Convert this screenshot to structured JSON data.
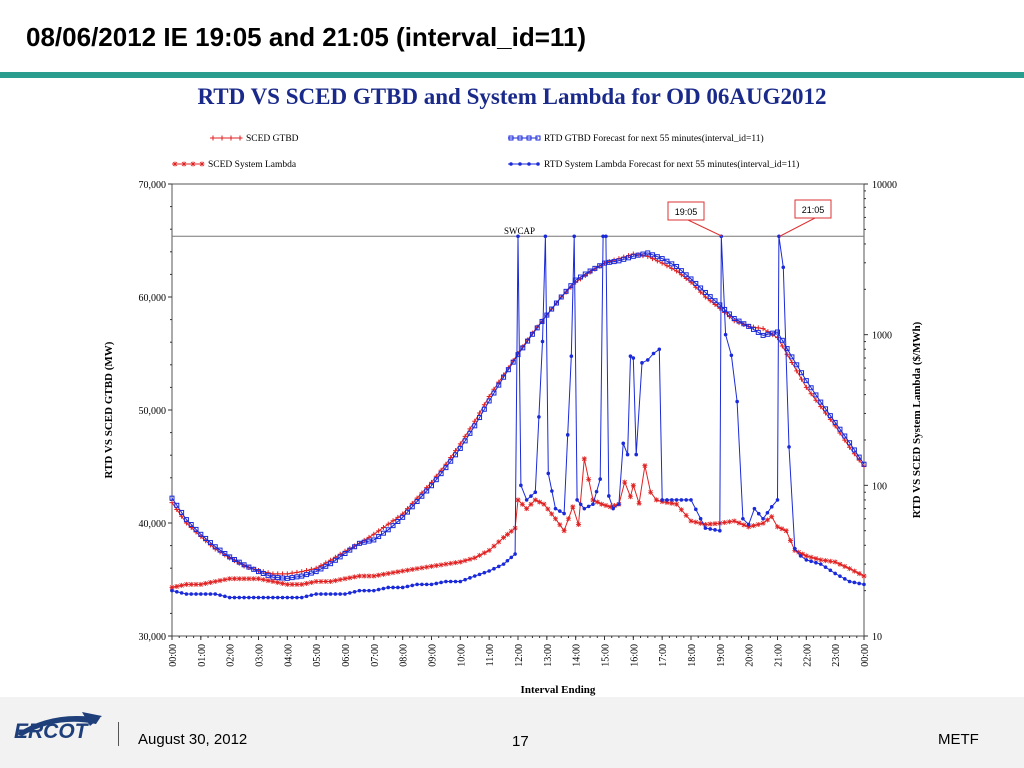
{
  "slide": {
    "title": "08/06/2012  IE 19:05 and 21:05 (interval_id=11)",
    "footer_date": "August 30, 2012",
    "page_number": "17",
    "org": "METF",
    "logo_text": "ERCOT"
  },
  "colors": {
    "accent_rule": "#2a9d8f",
    "chart_title": "#1a2a8a",
    "sced_series": "#e02020",
    "rtd_series": "#1a2ad8"
  },
  "chart_data": {
    "type": "line",
    "title": "RTD VS SCED GTBD and System Lambda for OD 06AUG2012",
    "xlabel": "Interval Ending",
    "ylabel_left": "RTD VS SCED GTBD (MW)",
    "ylabel_right": "RTD VS SCED System Lambda ($/MWh)",
    "x_ticks": [
      "00:00",
      "01:00",
      "02:00",
      "03:00",
      "04:00",
      "05:00",
      "06:00",
      "07:00",
      "08:00",
      "09:00",
      "10:00",
      "11:00",
      "12:00",
      "13:00",
      "14:00",
      "15:00",
      "16:00",
      "17:00",
      "18:00",
      "19:00",
      "20:00",
      "21:00",
      "22:00",
      "23:00",
      "00:00"
    ],
    "x_range_hours": [
      0,
      24
    ],
    "y_left": {
      "range": [
        30000,
        70000
      ],
      "ticks": [
        30000,
        40000,
        50000,
        60000,
        70000
      ],
      "tick_labels": [
        "30,000",
        "40,000",
        "50,000",
        "60,000",
        "70,000"
      ]
    },
    "y_right": {
      "scale": "log",
      "range": [
        10,
        10000
      ],
      "ticks": [
        10,
        100,
        1000,
        10000
      ],
      "tick_labels": [
        "10",
        "100",
        "1000",
        "10000"
      ]
    },
    "legend": {
      "placement": "top",
      "entries": [
        "SCED GTBD",
        "RTD GTBD Forecast for next 55 minutes(interval_id=11)",
        "SCED System Lambda",
        "RTD System Lambda Forecast for next 55 minutes(interval_id=11)"
      ]
    },
    "reference_line": {
      "label": "SWCAP",
      "axis": "right",
      "value": 4500
    },
    "annotations": [
      {
        "label": "19:05",
        "x_hour": 19.08,
        "value": 4500
      },
      {
        "label": "21:05",
        "x_hour": 21.08,
        "value": 4500
      }
    ],
    "series": [
      {
        "name": "SCED GTBD",
        "axis": "left",
        "marker": "plus",
        "color": "#e02020",
        "x": [
          0,
          0.5,
          1,
          1.5,
          2,
          2.5,
          3,
          3.5,
          4,
          4.5,
          5,
          5.5,
          6,
          6.5,
          7,
          7.5,
          8,
          8.5,
          9,
          9.5,
          10,
          10.5,
          11,
          11.5,
          12,
          12.5,
          13,
          13.5,
          14,
          14.5,
          15,
          15.5,
          16,
          16.5,
          17,
          17.5,
          18,
          18.5,
          19,
          19.5,
          20,
          20.5,
          21,
          21.5,
          22,
          22.5,
          23,
          23.5,
          24
        ],
        "y": [
          41800,
          40000,
          38800,
          37700,
          36900,
          36200,
          35800,
          35500,
          35500,
          35700,
          36000,
          36700,
          37500,
          38200,
          39000,
          39900,
          40800,
          42200,
          43600,
          45200,
          47000,
          49000,
          51200,
          53100,
          55000,
          56800,
          58400,
          60000,
          61300,
          62200,
          63000,
          63400,
          63800,
          63600,
          63000,
          62300,
          61300,
          60000,
          59000,
          57900,
          57400,
          57200,
          56400,
          54200,
          52000,
          50300,
          48600,
          46700,
          45000
        ]
      },
      {
        "name": "RTD GTBD Forecast for next 55 minutes(interval_id=11)",
        "axis": "left",
        "marker": "square",
        "color": "#1a2ad8",
        "x": [
          0,
          0.5,
          1,
          1.5,
          2,
          2.5,
          3,
          3.5,
          4,
          4.5,
          5,
          5.5,
          6,
          6.5,
          7,
          7.5,
          8,
          8.5,
          9,
          9.5,
          10,
          10.5,
          11,
          11.5,
          12,
          12.5,
          13,
          13.5,
          14,
          14.5,
          15,
          15.5,
          16,
          16.5,
          17,
          17.5,
          18,
          18.5,
          19,
          19.5,
          20,
          20.5,
          21,
          21.5,
          22,
          22.5,
          23,
          23.5,
          24
        ],
        "y": [
          42200,
          40300,
          39000,
          37900,
          37000,
          36300,
          35700,
          35200,
          35100,
          35300,
          35700,
          36400,
          37300,
          38200,
          38500,
          39400,
          40500,
          41900,
          43300,
          44900,
          46600,
          48600,
          50800,
          52900,
          54900,
          56700,
          58400,
          60000,
          61500,
          62300,
          63000,
          63200,
          63600,
          63900,
          63400,
          62700,
          61600,
          60400,
          59300,
          58100,
          57400,
          56600,
          56900,
          54700,
          52600,
          50700,
          48900,
          47100,
          45200
        ]
      },
      {
        "name": "SCED System Lambda",
        "axis": "right",
        "marker": "star",
        "color": "#e02020",
        "x": [
          0,
          0.5,
          1,
          1.5,
          2,
          2.5,
          3,
          3.5,
          4,
          4.5,
          5,
          5.5,
          6,
          6.5,
          7,
          7.5,
          8,
          8.5,
          9,
          9.5,
          10,
          10.5,
          11,
          11.5,
          11.9,
          12,
          12.3,
          12.6,
          12.9,
          13.3,
          13.6,
          13.9,
          14.1,
          14.3,
          14.6,
          14.9,
          15.2,
          15.5,
          15.7,
          15.9,
          16.0,
          16.2,
          16.4,
          16.6,
          16.8,
          17.0,
          17.5,
          18,
          18.5,
          19,
          19.5,
          20,
          20.5,
          20.8,
          21,
          21.3,
          21.6,
          22,
          22.5,
          23,
          23.5,
          24
        ],
        "y": [
          21,
          22,
          22,
          23,
          24,
          24,
          24,
          23,
          22,
          22,
          23,
          23,
          24,
          25,
          25,
          26,
          27,
          28,
          29,
          30,
          31,
          33,
          37,
          45,
          52,
          80,
          70,
          80,
          75,
          60,
          50,
          72,
          55,
          150,
          80,
          75,
          72,
          75,
          105,
          84,
          100,
          76,
          135,
          90,
          80,
          78,
          75,
          58,
          55,
          56,
          58,
          53,
          56,
          62,
          53,
          50,
          37,
          34,
          32,
          31,
          28,
          25
        ]
      },
      {
        "name": "RTD System Lambda Forecast for next 55 minutes(interval_id=11)",
        "axis": "right",
        "marker": "dot",
        "color": "#1a2ad8",
        "x": [
          0,
          0.5,
          1,
          1.5,
          2,
          2.5,
          3,
          3.5,
          4,
          4.5,
          5,
          5.5,
          6,
          6.5,
          7,
          7.5,
          8,
          8.5,
          9,
          9.5,
          10,
          10.5,
          11,
          11.5,
          11.9,
          12.0,
          12.1,
          12.3,
          12.6,
          12.85,
          12.95,
          13.05,
          13.3,
          13.6,
          13.85,
          13.95,
          14.05,
          14.3,
          14.6,
          14.85,
          14.95,
          15.05,
          15.15,
          15.3,
          15.5,
          15.65,
          15.8,
          15.9,
          16.0,
          16.1,
          16.3,
          16.5,
          16.7,
          16.9,
          17.0,
          17.5,
          18,
          18.5,
          19,
          19.05,
          19.2,
          19.4,
          19.6,
          19.8,
          20,
          20.2,
          20.5,
          20.8,
          21,
          21.05,
          21.2,
          21.4,
          21.6,
          21.8,
          22,
          22.5,
          23,
          23.5,
          24
        ],
        "y": [
          20,
          19,
          19,
          19,
          18,
          18,
          18,
          18,
          18,
          18,
          19,
          19,
          19,
          20,
          20,
          21,
          21,
          22,
          22,
          23,
          23,
          25,
          27,
          30,
          35,
          4500,
          100,
          80,
          90,
          900,
          4500,
          120,
          70,
          65,
          720,
          4500,
          80,
          70,
          75,
          110,
          4500,
          4500,
          85,
          70,
          75,
          190,
          160,
          720,
          700,
          160,
          650,
          680,
          750,
          800,
          80,
          80,
          80,
          52,
          50,
          4500,
          1000,
          730,
          360,
          60,
          55,
          70,
          60,
          72,
          80,
          4500,
          2800,
          180,
          38,
          34,
          32,
          30,
          26,
          23,
          22
        ]
      }
    ]
  }
}
